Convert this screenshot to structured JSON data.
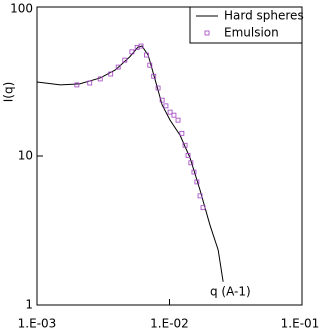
{
  "chart_data": {
    "type": "line",
    "xlabel": "q (A-1)",
    "ylabel": "I(q)",
    "xlog": true,
    "ylog": true,
    "xlim": [
      0.001,
      0.1
    ],
    "ylim": [
      1,
      100
    ],
    "xticks": [
      {
        "value": 0.001,
        "label": "1.E-03"
      },
      {
        "value": 0.01,
        "label": "1.E-02"
      },
      {
        "value": 0.1,
        "label": "1.E-01"
      }
    ],
    "yticks": [
      1,
      10,
      100
    ],
    "legend": "upper right",
    "series": [
      {
        "name": "Hard spheres",
        "type": "line",
        "color": "#000000",
        "x": [
          0.001,
          0.0015,
          0.0021,
          0.003,
          0.0039,
          0.005,
          0.0058,
          0.0062,
          0.0069,
          0.0078,
          0.0088,
          0.0101,
          0.012,
          0.0143,
          0.017,
          0.0202,
          0.0233,
          0.0254
        ],
        "values": [
          31.4,
          30,
          30.5,
          33.4,
          37.8,
          46.2,
          53.9,
          54.7,
          47.6,
          32.4,
          22,
          17.4,
          13.8,
          9.7,
          5.9,
          3.44,
          2.34,
          1.43
        ]
      },
      {
        "name": "Emulsion",
        "type": "scatter",
        "color": "#a040c0",
        "x": [
          0.002,
          0.0025,
          0.003,
          0.0036,
          0.0041,
          0.0046,
          0.0052,
          0.0057,
          0.0061,
          0.0067,
          0.0071,
          0.0076,
          0.0082,
          0.0088,
          0.0094,
          0.0101,
          0.0108,
          0.0116,
          0.0124,
          0.0131,
          0.0138,
          0.0145,
          0.0153,
          0.0161,
          0.017,
          0.0179
        ],
        "values": [
          30,
          30.9,
          32.9,
          35.5,
          39.5,
          44,
          50,
          53.5,
          54.7,
          47.6,
          40.7,
          34.3,
          28.6,
          23.7,
          21.7,
          19.7,
          18.8,
          17.4,
          14.2,
          11.8,
          10.1,
          9,
          7.8,
          6.7,
          5.4,
          4.5
        ]
      }
    ]
  }
}
